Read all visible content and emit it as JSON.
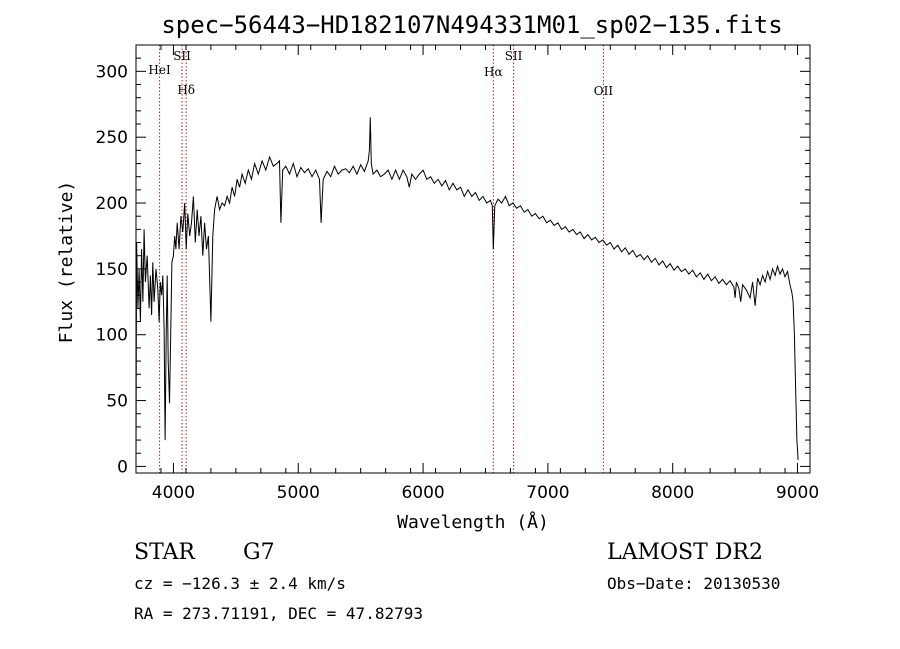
{
  "chart_data": {
    "type": "line",
    "title": "spec−56443−HD182107N494331M01_sp02−135.fits",
    "xlabel": "Wavelength (Å)",
    "ylabel": "Flux (relative)",
    "xlim": [
      3700,
      9100
    ],
    "ylim": [
      -5,
      320
    ],
    "xticks": [
      4000,
      5000,
      6000,
      7000,
      8000,
      9000
    ],
    "yticks": [
      0,
      50,
      100,
      150,
      200,
      250,
      300
    ],
    "grid": false,
    "spectrum_color": "#000000",
    "line_marker_color": "#b22222",
    "spectral_lines": [
      {
        "label": "HeI",
        "x": 3889
      },
      {
        "label": "SII",
        "x": 4069
      },
      {
        "label": "Hδ",
        "x": 4102
      },
      {
        "label": "Hα",
        "x": 6563
      },
      {
        "label": "SII",
        "x": 6725
      },
      {
        "label": "OII",
        "x": 7445
      }
    ],
    "series": [
      {
        "points": [
          [
            3700,
            5
          ],
          [
            3705,
            170
          ],
          [
            3715,
            120
          ],
          [
            3725,
            150
          ],
          [
            3735,
            110
          ],
          [
            3745,
            165
          ],
          [
            3755,
            125
          ],
          [
            3765,
            180
          ],
          [
            3775,
            140
          ],
          [
            3790,
            160
          ],
          [
            3805,
            120
          ],
          [
            3815,
            145
          ],
          [
            3825,
            115
          ],
          [
            3835,
            155
          ],
          [
            3845,
            125
          ],
          [
            3860,
            150
          ],
          [
            3875,
            135
          ],
          [
            3885,
            110
          ],
          [
            3895,
            140
          ],
          [
            3905,
            130
          ],
          [
            3915,
            145
          ],
          [
            3925,
            105
          ],
          [
            3933,
            20
          ],
          [
            3942,
            100
          ],
          [
            3950,
            145
          ],
          [
            3958,
            80
          ],
          [
            3968,
            48
          ],
          [
            3978,
            100
          ],
          [
            3988,
            155
          ],
          [
            4000,
            160
          ],
          [
            4010,
            175
          ],
          [
            4020,
            165
          ],
          [
            4030,
            185
          ],
          [
            4045,
            165
          ],
          [
            4060,
            190
          ],
          [
            4075,
            178
          ],
          [
            4090,
            200
          ],
          [
            4102,
            165
          ],
          [
            4115,
            192
          ],
          [
            4130,
            175
          ],
          [
            4145,
            185
          ],
          [
            4160,
            205
          ],
          [
            4175,
            170
          ],
          [
            4190,
            195
          ],
          [
            4205,
            175
          ],
          [
            4220,
            190
          ],
          [
            4235,
            160
          ],
          [
            4250,
            185
          ],
          [
            4265,
            165
          ],
          [
            4280,
            175
          ],
          [
            4300,
            110
          ],
          [
            4315,
            175
          ],
          [
            4330,
            195
          ],
          [
            4350,
            205
          ],
          [
            4370,
            195
          ],
          [
            4390,
            200
          ],
          [
            4410,
            198
          ],
          [
            4430,
            205
          ],
          [
            4450,
            200
          ],
          [
            4470,
            212
          ],
          [
            4490,
            205
          ],
          [
            4510,
            218
          ],
          [
            4530,
            212
          ],
          [
            4550,
            222
          ],
          [
            4575,
            215
          ],
          [
            4600,
            225
          ],
          [
            4625,
            218
          ],
          [
            4650,
            230
          ],
          [
            4680,
            222
          ],
          [
            4710,
            232
          ],
          [
            4740,
            225
          ],
          [
            4770,
            235
          ],
          [
            4800,
            228
          ],
          [
            4830,
            230
          ],
          [
            4850,
            232
          ],
          [
            4861,
            185
          ],
          [
            4875,
            225
          ],
          [
            4900,
            228
          ],
          [
            4930,
            222
          ],
          [
            4960,
            230
          ],
          [
            4990,
            220
          ],
          [
            5020,
            227
          ],
          [
            5050,
            223
          ],
          [
            5080,
            226
          ],
          [
            5110,
            220
          ],
          [
            5140,
            225
          ],
          [
            5170,
            218
          ],
          [
            5183,
            185
          ],
          [
            5200,
            218
          ],
          [
            5230,
            224
          ],
          [
            5260,
            220
          ],
          [
            5290,
            228
          ],
          [
            5320,
            222
          ],
          [
            5350,
            225
          ],
          [
            5380,
            226
          ],
          [
            5410,
            223
          ],
          [
            5440,
            228
          ],
          [
            5470,
            222
          ],
          [
            5500,
            229
          ],
          [
            5530,
            224
          ],
          [
            5560,
            232
          ],
          [
            5570,
            240
          ],
          [
            5577,
            265
          ],
          [
            5585,
            230
          ],
          [
            5600,
            222
          ],
          [
            5630,
            225
          ],
          [
            5660,
            220
          ],
          [
            5690,
            222
          ],
          [
            5720,
            225
          ],
          [
            5750,
            218
          ],
          [
            5780,
            225
          ],
          [
            5810,
            218
          ],
          [
            5840,
            225
          ],
          [
            5870,
            220
          ],
          [
            5890,
            212
          ],
          [
            5910,
            222
          ],
          [
            5940,
            218
          ],
          [
            5970,
            222
          ],
          [
            6000,
            225
          ],
          [
            6030,
            218
          ],
          [
            6060,
            220
          ],
          [
            6090,
            215
          ],
          [
            6120,
            218
          ],
          [
            6150,
            213
          ],
          [
            6180,
            217
          ],
          [
            6210,
            210
          ],
          [
            6240,
            215
          ],
          [
            6270,
            210
          ],
          [
            6300,
            212
          ],
          [
            6330,
            205
          ],
          [
            6360,
            210
          ],
          [
            6390,
            205
          ],
          [
            6420,
            208
          ],
          [
            6450,
            202
          ],
          [
            6480,
            205
          ],
          [
            6510,
            200
          ],
          [
            6540,
            202
          ],
          [
            6555,
            198
          ],
          [
            6563,
            165
          ],
          [
            6575,
            198
          ],
          [
            6600,
            203
          ],
          [
            6630,
            200
          ],
          [
            6660,
            205
          ],
          [
            6690,
            198
          ],
          [
            6720,
            200
          ],
          [
            6750,
            196
          ],
          [
            6780,
            198
          ],
          [
            6810,
            193
          ],
          [
            6840,
            195
          ],
          [
            6870,
            190
          ],
          [
            6900,
            192
          ],
          [
            6930,
            188
          ],
          [
            6960,
            190
          ],
          [
            6990,
            185
          ],
          [
            7020,
            187
          ],
          [
            7050,
            183
          ],
          [
            7080,
            185
          ],
          [
            7110,
            180
          ],
          [
            7140,
            182
          ],
          [
            7170,
            178
          ],
          [
            7200,
            180
          ],
          [
            7230,
            176
          ],
          [
            7260,
            178
          ],
          [
            7290,
            173
          ],
          [
            7320,
            176
          ],
          [
            7350,
            172
          ],
          [
            7380,
            174
          ],
          [
            7410,
            170
          ],
          [
            7440,
            172
          ],
          [
            7470,
            168
          ],
          [
            7500,
            170
          ],
          [
            7530,
            165
          ],
          [
            7560,
            168
          ],
          [
            7590,
            163
          ],
          [
            7620,
            166
          ],
          [
            7650,
            161
          ],
          [
            7680,
            164
          ],
          [
            7710,
            159
          ],
          [
            7740,
            161
          ],
          [
            7770,
            157
          ],
          [
            7800,
            160
          ],
          [
            7830,
            155
          ],
          [
            7860,
            158
          ],
          [
            7890,
            153
          ],
          [
            7920,
            156
          ],
          [
            7950,
            151
          ],
          [
            7980,
            154
          ],
          [
            8010,
            149
          ],
          [
            8040,
            152
          ],
          [
            8070,
            148
          ],
          [
            8100,
            150
          ],
          [
            8130,
            146
          ],
          [
            8160,
            149
          ],
          [
            8190,
            144
          ],
          [
            8220,
            147
          ],
          [
            8250,
            142
          ],
          [
            8280,
            146
          ],
          [
            8310,
            141
          ],
          [
            8340,
            144
          ],
          [
            8370,
            139
          ],
          [
            8400,
            142
          ],
          [
            8430,
            138
          ],
          [
            8460,
            141
          ],
          [
            8490,
            136
          ],
          [
            8500,
            128
          ],
          [
            8510,
            140
          ],
          [
            8530,
            135
          ],
          [
            8545,
            125
          ],
          [
            8560,
            138
          ],
          [
            8590,
            134
          ],
          [
            8620,
            128
          ],
          [
            8640,
            140
          ],
          [
            8660,
            122
          ],
          [
            8680,
            143
          ],
          [
            8700,
            138
          ],
          [
            8720,
            145
          ],
          [
            8740,
            140
          ],
          [
            8760,
            148
          ],
          [
            8780,
            142
          ],
          [
            8800,
            150
          ],
          [
            8820,
            145
          ],
          [
            8840,
            152
          ],
          [
            8860,
            146
          ],
          [
            8880,
            150
          ],
          [
            8900,
            144
          ],
          [
            8920,
            148
          ],
          [
            8940,
            138
          ],
          [
            8955,
            132
          ],
          [
            8965,
            125
          ],
          [
            8975,
            100
          ],
          [
            8985,
            60
          ],
          [
            8995,
            20
          ],
          [
            9005,
            5
          ]
        ]
      }
    ]
  },
  "info": {
    "object_class": "STAR",
    "subclass": "G7",
    "survey": "LAMOST DR2",
    "redshift": "cz = −126.3 ± 2.4 km/s",
    "obs_date": "Obs−Date: 20130530",
    "coords": "RA = 273.71191, DEC =  47.82793"
  }
}
